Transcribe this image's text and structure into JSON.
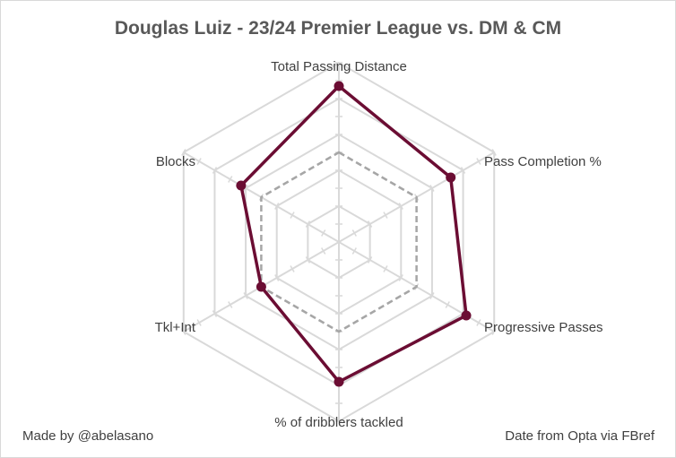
{
  "title": "Douglas  Luiz - 23/24 Premier League vs. DM & CM",
  "footer": {
    "left": "Made by @abelasano",
    "right": "Date from Opta via FBref"
  },
  "colors": {
    "player_series": "#6b0d33",
    "benchmark_series": "#a6a6a6",
    "grid": "#d9d9d9",
    "text": "#404040",
    "title": "#595959"
  },
  "chart_data": {
    "type": "radar",
    "categories": [
      "Total Passing Distance",
      "Pass Completion %",
      "Progressive Passes",
      "% of dribblers tackled",
      "Tkl+Int",
      "Blocks"
    ],
    "rlim": [
      0,
      100
    ],
    "grid_levels": [
      20,
      40,
      60,
      80,
      100
    ],
    "series": [
      {
        "style": "solid",
        "markers": true,
        "values": [
          87,
          72,
          82,
          78,
          50,
          63
        ]
      },
      {
        "style": "dashed",
        "markers": false,
        "values": [
          50,
          50,
          50,
          50,
          50,
          50
        ]
      }
    ]
  }
}
